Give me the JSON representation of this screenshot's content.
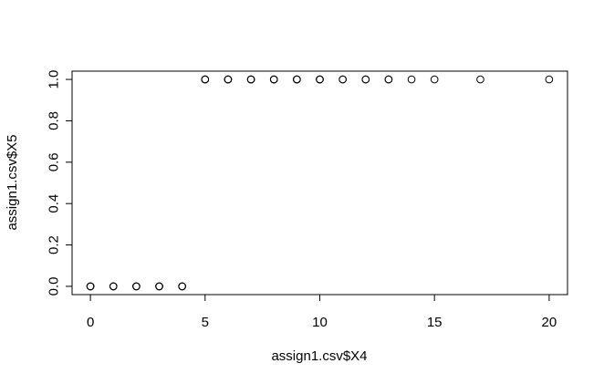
{
  "chart_data": {
    "type": "scatter",
    "title": "",
    "xlabel": "assign1.csv$X4",
    "ylabel": "assign1.csv$X5",
    "xlim": [
      -0.8,
      20.8
    ],
    "ylim": [
      -0.04,
      1.04
    ],
    "x_ticks": [
      0,
      5,
      10,
      15,
      20
    ],
    "x_tick_labels": [
      "0",
      "5",
      "10",
      "15",
      "20"
    ],
    "y_ticks": [
      0.0,
      0.2,
      0.4,
      0.6,
      0.8,
      1.0
    ],
    "y_tick_labels": [
      "0.0",
      "0.2",
      "0.4",
      "0.6",
      "0.8",
      "1.0"
    ],
    "grid": false,
    "marker": "open-circle",
    "marker_color": "#000000",
    "points": [
      {
        "x": 0,
        "y": 0
      },
      {
        "x": 0,
        "y": 0
      },
      {
        "x": 0,
        "y": 0
      },
      {
        "x": 1,
        "y": 0
      },
      {
        "x": 1,
        "y": 0
      },
      {
        "x": 1,
        "y": 0
      },
      {
        "x": 2,
        "y": 0
      },
      {
        "x": 2,
        "y": 0
      },
      {
        "x": 2,
        "y": 0
      },
      {
        "x": 3,
        "y": 0
      },
      {
        "x": 3,
        "y": 0
      },
      {
        "x": 3,
        "y": 0
      },
      {
        "x": 4,
        "y": 0
      },
      {
        "x": 4,
        "y": 0
      },
      {
        "x": 4,
        "y": 0
      },
      {
        "x": 5,
        "y": 1
      },
      {
        "x": 5,
        "y": 1
      },
      {
        "x": 5,
        "y": 1
      },
      {
        "x": 6,
        "y": 1
      },
      {
        "x": 6,
        "y": 1
      },
      {
        "x": 6,
        "y": 1
      },
      {
        "x": 7,
        "y": 1
      },
      {
        "x": 7,
        "y": 1
      },
      {
        "x": 7,
        "y": 1
      },
      {
        "x": 8,
        "y": 1
      },
      {
        "x": 8,
        "y": 1
      },
      {
        "x": 8,
        "y": 1
      },
      {
        "x": 9,
        "y": 1
      },
      {
        "x": 9,
        "y": 1
      },
      {
        "x": 9,
        "y": 1
      },
      {
        "x": 10,
        "y": 1
      },
      {
        "x": 10,
        "y": 1
      },
      {
        "x": 10,
        "y": 1
      },
      {
        "x": 11,
        "y": 1
      },
      {
        "x": 11,
        "y": 1
      },
      {
        "x": 12,
        "y": 1
      },
      {
        "x": 12,
        "y": 1
      },
      {
        "x": 13,
        "y": 1
      },
      {
        "x": 13,
        "y": 1
      },
      {
        "x": 14,
        "y": 1
      },
      {
        "x": 15,
        "y": 1
      },
      {
        "x": 17,
        "y": 1
      },
      {
        "x": 20,
        "y": 1
      }
    ]
  }
}
